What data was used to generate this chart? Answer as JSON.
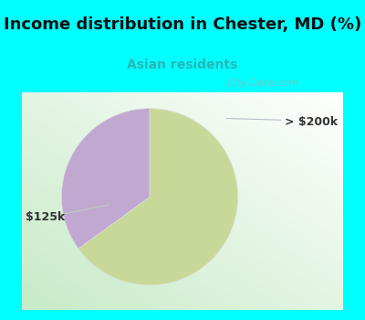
{
  "title": "Income distribution in Chester, MD (%)",
  "subtitle": "Asian residents",
  "subtitle_color": "#2ab5b5",
  "title_color": "#111111",
  "bg_cyan": "#00FFFF",
  "chart_bg_gradient_start": "#ffffff",
  "chart_bg_gradient_end": "#c8e8c8",
  "slices": [
    65.0,
    35.0
  ],
  "slice_labels": [
    "$125k",
    "> $200k"
  ],
  "colors": [
    "#c8d898",
    "#c0a8d0"
  ],
  "start_angle": 90,
  "watermark": "City-Data.com",
  "title_fontsize": 13,
  "subtitle_fontsize": 10,
  "label_fontsize": 9,
  "label_color": "#333333"
}
